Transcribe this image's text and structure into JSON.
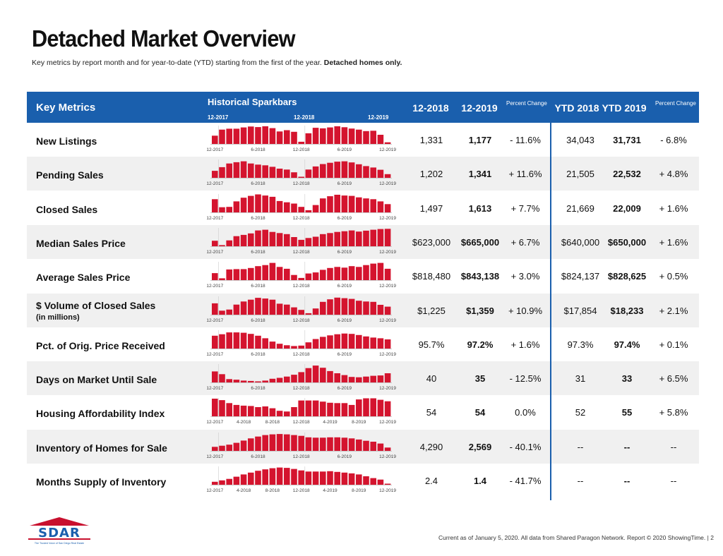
{
  "page": {
    "title": "Detached Market Overview",
    "subtitle_prefix": "Key metrics by report month and for year-to-date (YTD) starting from the first of the year.",
    "subtitle_bold": "Detached homes only.",
    "footer": "Current as of January 5, 2020. All data from Shared Paragon Network. Report © 2020 ShowingTime.  |  2",
    "logo_text": "SDAR",
    "logo_tagline": "The Trusted Voice of San Diego Real Estate"
  },
  "colors": {
    "header_bg": "#1a5fad",
    "bar": "#d4142e",
    "row_shade": "#f0f0f0",
    "text": "#111111"
  },
  "header": {
    "key_metrics": "Key Metrics",
    "sparkbars": "Historical Sparkbars",
    "spark_dates": [
      "12-2017",
      "12-2018",
      "12-2019"
    ],
    "col_12_2018": "12-2018",
    "col_12_2019": "12-2019",
    "pct_change_1": "Percent Change",
    "col_ytd_2018": "YTD 2018",
    "col_ytd_2019": "YTD 2019",
    "pct_change_2": "Percent Change"
  },
  "chart_data": {
    "type": "table",
    "rows": [
      {
        "metric": "New Listings",
        "sub": "",
        "spark_labels": [
          "12-2017",
          "6-2018",
          "12-2018",
          "6-2019",
          "12-2019"
        ],
        "spark": [
          0.45,
          0.78,
          0.83,
          0.83,
          0.9,
          0.95,
          0.92,
          0.96,
          0.86,
          0.68,
          0.75,
          0.66,
          0.12,
          0.58,
          0.88,
          0.85,
          0.9,
          0.96,
          0.91,
          0.84,
          0.78,
          0.7,
          0.72,
          0.5,
          0.09
        ],
        "m12_2018": "1,331",
        "m12_2019": "1,177",
        "pct": "- 11.6%",
        "ytd2018": "34,043",
        "ytd2019": "31,731",
        "ytd_pct": "- 6.8%"
      },
      {
        "metric": "Pending Sales",
        "sub": "",
        "spark_labels": [
          "12-2017",
          "6-2018",
          "12-2018",
          "6-2019",
          "12-2019"
        ],
        "spark": [
          0.38,
          0.58,
          0.78,
          0.85,
          0.9,
          0.78,
          0.72,
          0.68,
          0.6,
          0.5,
          0.45,
          0.3,
          0.05,
          0.45,
          0.62,
          0.75,
          0.82,
          0.88,
          0.9,
          0.84,
          0.74,
          0.64,
          0.56,
          0.44,
          0.2
        ],
        "m12_2018": "1,202",
        "m12_2019": "1,341",
        "pct": "+ 11.6%",
        "ytd2018": "21,505",
        "ytd2019": "22,532",
        "ytd_pct": "+ 4.8%"
      },
      {
        "metric": "Closed Sales",
        "sub": "",
        "spark_labels": [
          "12-2017",
          "6-2018",
          "12-2018",
          "6-2019",
          "12-2019"
        ],
        "spark": [
          0.72,
          0.28,
          0.3,
          0.6,
          0.8,
          0.9,
          0.98,
          0.92,
          0.85,
          0.62,
          0.55,
          0.48,
          0.3,
          0.12,
          0.4,
          0.76,
          0.88,
          0.96,
          0.92,
          0.9,
          0.82,
          0.76,
          0.72,
          0.6,
          0.45
        ],
        "m12_2018": "1,497",
        "m12_2019": "1,613",
        "pct": "+ 7.7%",
        "ytd2018": "21,669",
        "ytd2019": "22,009",
        "ytd_pct": "+ 1.6%"
      },
      {
        "metric": "Median Sales Price",
        "sub": "",
        "spark_labels": [
          "12-2017",
          "6-2018",
          "12-2018",
          "6-2019",
          "12-2019"
        ],
        "spark": [
          0.3,
          0.06,
          0.32,
          0.55,
          0.62,
          0.7,
          0.86,
          0.9,
          0.78,
          0.72,
          0.66,
          0.5,
          0.35,
          0.45,
          0.52,
          0.66,
          0.72,
          0.78,
          0.82,
          0.86,
          0.8,
          0.85,
          0.9,
          0.94,
          0.95
        ],
        "m12_2018": "$623,000",
        "m12_2019": "$665,000",
        "pct": "+ 6.7%",
        "ytd2018": "$640,000",
        "ytd2019": "$650,000",
        "ytd_pct": "+ 1.6%"
      },
      {
        "metric": "Average Sales Price",
        "sub": "",
        "spark_labels": [
          "12-2017",
          "6-2018",
          "12-2018",
          "6-2019",
          "12-2019"
        ],
        "spark": [
          0.38,
          0.1,
          0.58,
          0.6,
          0.6,
          0.66,
          0.76,
          0.82,
          0.94,
          0.72,
          0.62,
          0.28,
          0.12,
          0.36,
          0.42,
          0.56,
          0.66,
          0.72,
          0.68,
          0.76,
          0.72,
          0.82,
          0.9,
          0.94,
          0.62
        ],
        "m12_2018": "$818,480",
        "m12_2019": "$843,138",
        "pct": "+ 3.0%",
        "ytd2018": "$824,137",
        "ytd2019": "$828,625",
        "ytd_pct": "+ 0.5%"
      },
      {
        "metric": "$ Volume of Closed Sales",
        "sub": "(in millions)",
        "spark_labels": [
          "12-2017",
          "6-2018",
          "12-2018",
          "6-2019",
          "12-2019"
        ],
        "spark": [
          0.62,
          0.22,
          0.28,
          0.55,
          0.72,
          0.82,
          0.92,
          0.88,
          0.82,
          0.6,
          0.55,
          0.4,
          0.26,
          0.08,
          0.34,
          0.7,
          0.84,
          0.93,
          0.9,
          0.86,
          0.76,
          0.72,
          0.7,
          0.54,
          0.44
        ],
        "m12_2018": "$1,225",
        "m12_2019": "$1,359",
        "pct": "+ 10.9%",
        "ytd2018": "$17,854",
        "ytd2019": "$18,233",
        "ytd_pct": "+ 2.1%"
      },
      {
        "metric": "Pct. of Orig. Price Received",
        "sub": "",
        "spark_labels": [
          "12-2017",
          "6-2018",
          "12-2018",
          "6-2019",
          "12-2019"
        ],
        "spark": [
          0.7,
          0.78,
          0.88,
          0.88,
          0.86,
          0.8,
          0.7,
          0.56,
          0.38,
          0.26,
          0.18,
          0.14,
          0.16,
          0.34,
          0.52,
          0.64,
          0.72,
          0.78,
          0.82,
          0.8,
          0.74,
          0.66,
          0.6,
          0.56,
          0.5
        ],
        "m12_2018": "95.7%",
        "m12_2019": "97.2%",
        "pct": "+ 1.6%",
        "ytd2018": "97.3%",
        "ytd2019": "97.4%",
        "ytd_pct": "+ 0.1%"
      },
      {
        "metric": "Days on Market Until Sale",
        "sub": "",
        "spark_labels": [
          "12-2017",
          "6-2018",
          "12-2018",
          "6-2019",
          "12-2019"
        ],
        "spark": [
          0.6,
          0.45,
          0.18,
          0.15,
          0.1,
          0.08,
          0.05,
          0.1,
          0.2,
          0.25,
          0.32,
          0.42,
          0.56,
          0.78,
          0.92,
          0.8,
          0.62,
          0.5,
          0.4,
          0.3,
          0.28,
          0.32,
          0.36,
          0.38,
          0.5
        ],
        "m12_2018": "40",
        "m12_2019": "35",
        "pct": "- 12.5%",
        "ytd2018": "31",
        "ytd2019": "33",
        "ytd_pct": "+ 6.5%"
      },
      {
        "metric": "Housing Affordability Index",
        "sub": "",
        "spark_labels": [
          "12-2017",
          "4-2018",
          "8-2018",
          "12-2018",
          "4-2019",
          "8-2019",
          "12-2019"
        ],
        "spark": [
          0.96,
          0.88,
          0.72,
          0.62,
          0.58,
          0.56,
          0.5,
          0.54,
          0.44,
          0.3,
          0.26,
          0.5,
          0.86,
          0.86,
          0.86,
          0.8,
          0.74,
          0.72,
          0.72,
          0.62,
          0.92,
          0.98,
          0.98,
          0.9,
          0.82
        ],
        "m12_2018": "54",
        "m12_2019": "54",
        "pct": "0.0%",
        "ytd2018": "52",
        "ytd2019": "55",
        "ytd_pct": "+ 5.8%"
      },
      {
        "metric": "Inventory of Homes for Sale",
        "sub": "",
        "spark_labels": [
          "12-2017",
          "6-2018",
          "12-2018",
          "6-2019",
          "12-2019"
        ],
        "spark": [
          0.22,
          0.28,
          0.34,
          0.44,
          0.56,
          0.68,
          0.78,
          0.86,
          0.9,
          0.92,
          0.9,
          0.86,
          0.82,
          0.74,
          0.72,
          0.72,
          0.74,
          0.74,
          0.72,
          0.68,
          0.62,
          0.55,
          0.5,
          0.4,
          0.18
        ],
        "m12_2018": "4,290",
        "m12_2019": "2,569",
        "pct": "- 40.1%",
        "ytd2018": "--",
        "ytd2019": "--",
        "ytd_pct": "--"
      },
      {
        "metric": "Months Supply of Inventory",
        "sub": "",
        "spark_labels": [
          "12-2017",
          "4-2018",
          "8-2018",
          "12-2018",
          "4-2019",
          "8-2019",
          "12-2019"
        ],
        "spark": [
          0.16,
          0.24,
          0.32,
          0.44,
          0.56,
          0.66,
          0.76,
          0.84,
          0.9,
          0.94,
          0.92,
          0.86,
          0.78,
          0.72,
          0.72,
          0.72,
          0.74,
          0.7,
          0.66,
          0.62,
          0.56,
          0.46,
          0.36,
          0.28,
          0.04
        ],
        "m12_2018": "2.4",
        "m12_2019": "1.4",
        "pct": "- 41.7%",
        "ytd2018": "--",
        "ytd2019": "--",
        "ytd_pct": "--"
      }
    ]
  }
}
